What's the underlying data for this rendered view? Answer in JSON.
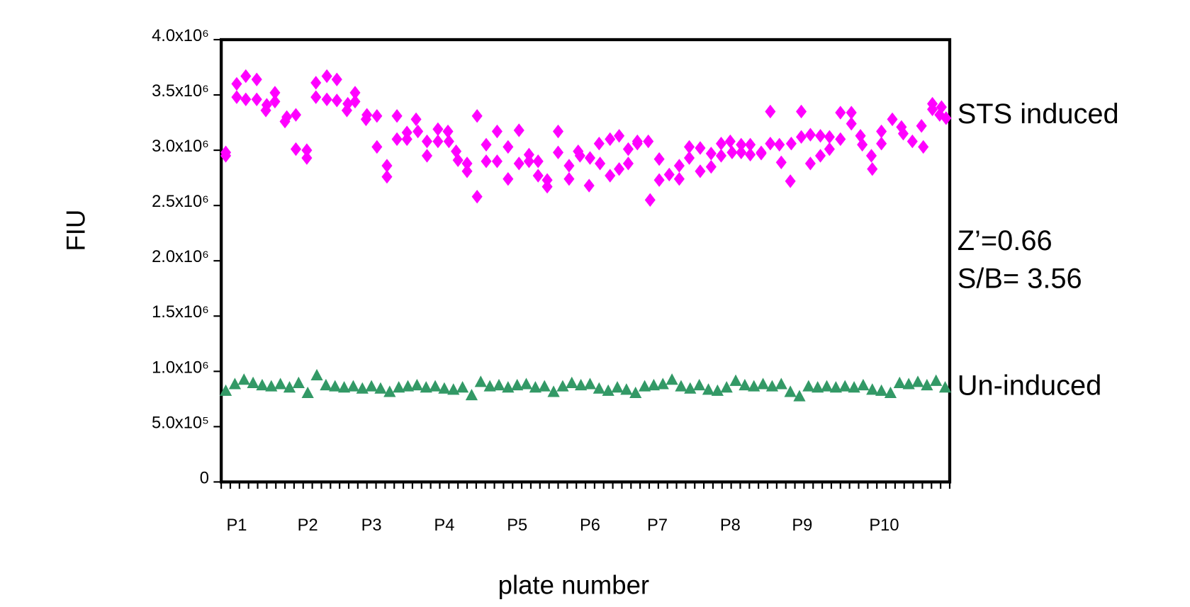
{
  "chart_data": {
    "type": "scatter",
    "y_label": "FIU",
    "x_label": "plate number",
    "annotations": [
      "STS induced",
      "Z’=0.66",
      "S/B= 3.56",
      "Un-induced"
    ],
    "xlim": [
      0,
      80
    ],
    "xticks": [
      {
        "value": 1.7,
        "label": "P1"
      },
      {
        "value": 9.5,
        "label": "P2"
      },
      {
        "value": 16.5,
        "label": "P3"
      },
      {
        "value": 24.5,
        "label": "P4"
      },
      {
        "value": 32.5,
        "label": "P5"
      },
      {
        "value": 40.5,
        "label": "P6"
      },
      {
        "value": 47.9,
        "label": "P7"
      },
      {
        "value": 55.9,
        "label": "P8"
      },
      {
        "value": 63.8,
        "label": "P9"
      },
      {
        "value": 72.8,
        "label": "P10"
      }
    ],
    "ylim": [
      0,
      4000000
    ],
    "yticks": [
      0,
      {
        "value": 500000,
        "label": "5.0x10⁵"
      },
      {
        "value": 1000000,
        "label": "1.0x10⁶"
      },
      {
        "value": 1500000,
        "label": "1.5x10⁶"
      },
      {
        "value": 2000000,
        "label": "2.0x10⁶"
      },
      {
        "value": 2500000,
        "label": "2.5x10⁶"
      },
      {
        "value": 3000000,
        "label": "3.0x10⁶"
      },
      {
        "value": 3500000,
        "label": "3.5x10⁶"
      },
      {
        "value": 4000000,
        "label": "4.0x10⁶"
      }
    ],
    "series": [
      {
        "color": "#ff00ff",
        "marker": "diamond",
        "x": [
          0.5,
          0.5,
          1.7,
          1.7,
          2.7,
          2.7,
          3.9,
          3.9,
          4.9,
          5.0,
          5.9,
          5.9,
          7.0,
          7.2,
          8.2,
          8.2,
          9.4,
          9.4,
          10.4,
          10.4,
          11.6,
          11.6,
          12.7,
          12.7,
          13.8,
          13.9,
          14.7,
          14.7,
          15.9,
          16.0,
          17.1,
          17.1,
          18.2,
          18.2,
          19.3,
          19.3,
          20.4,
          20.4,
          21.4,
          21.6,
          22.6,
          22.6,
          23.8,
          23.8,
          24.9,
          25.0,
          25.8,
          26.0,
          27.0,
          27.0,
          28.1,
          28.1,
          29.1,
          29.1,
          30.3,
          30.3,
          31.5,
          31.5,
          32.7,
          32.7,
          33.8,
          33.8,
          34.8,
          34.8,
          35.8,
          35.8,
          37.0,
          37.0,
          38.2,
          38.2,
          39.2,
          39.4,
          40.4,
          40.5,
          41.5,
          41.6,
          42.7,
          42.7,
          43.7,
          43.7,
          44.7,
          44.7,
          45.7,
          45.7,
          46.9,
          47.1,
          48.1,
          48.1,
          49.2,
          50.3,
          50.3,
          51.4,
          51.4,
          52.6,
          52.6,
          53.8,
          53.8,
          54.9,
          54.9,
          55.9,
          56.1,
          57.1,
          57.1,
          58.1,
          58.1,
          59.3,
          59.3,
          60.3,
          60.3,
          61.3,
          61.5,
          62.5,
          62.6,
          63.7,
          63.7,
          64.7,
          64.7,
          65.8,
          65.8,
          66.8,
          66.8,
          68.0,
          68.0,
          69.2,
          69.2,
          70.2,
          70.4,
          71.4,
          71.5,
          72.5,
          72.5,
          73.7,
          74.7,
          74.9,
          75.9,
          76.9,
          77.1,
          78.1,
          78.1,
          78.9,
          79.1,
          79.6
        ],
        "values": [
          2980000,
          2950000,
          3600000,
          3480000,
          3670000,
          3460000,
          3640000,
          3460000,
          3360000,
          3410000,
          3520000,
          3440000,
          3260000,
          3300000,
          3320000,
          3010000,
          3000000,
          2930000,
          3610000,
          3480000,
          3670000,
          3460000,
          3640000,
          3450000,
          3360000,
          3420000,
          3520000,
          3440000,
          3280000,
          3320000,
          3310000,
          3030000,
          2860000,
          2760000,
          3310000,
          3100000,
          3160000,
          3100000,
          3280000,
          3170000,
          2950000,
          3080000,
          3080000,
          3190000,
          3170000,
          3080000,
          2990000,
          2910000,
          2810000,
          2880000,
          3310000,
          2580000,
          3050000,
          2900000,
          3170000,
          2900000,
          3030000,
          2740000,
          2880000,
          3180000,
          2960000,
          2900000,
          2770000,
          2900000,
          2670000,
          2730000,
          3170000,
          2980000,
          2740000,
          2860000,
          2990000,
          2950000,
          2680000,
          2930000,
          3060000,
          2880000,
          3100000,
          2770000,
          3130000,
          2830000,
          2880000,
          3010000,
          3080000,
          3060000,
          3080000,
          2550000,
          2920000,
          2730000,
          2780000,
          2740000,
          2860000,
          3030000,
          2930000,
          3020000,
          2810000,
          2970000,
          2850000,
          2950000,
          3060000,
          3080000,
          2980000,
          3050000,
          2980000,
          3050000,
          2960000,
          2970000,
          2980000,
          3350000,
          3060000,
          3050000,
          2890000,
          2720000,
          3060000,
          3350000,
          3120000,
          2880000,
          3140000,
          3130000,
          2950000,
          3010000,
          3120000,
          3340000,
          3100000,
          3340000,
          3240000,
          3130000,
          3050000,
          2950000,
          2830000,
          3170000,
          3060000,
          3280000,
          3210000,
          3150000,
          3080000,
          3220000,
          3030000,
          3420000,
          3370000,
          3320000,
          3390000,
          3290000
        ]
      },
      {
        "color": "#339966",
        "marker": "triangle",
        "x": [
          0.5,
          1.5,
          2.5,
          3.5,
          4.5,
          5.5,
          6.5,
          7.5,
          8.5,
          9.5,
          10.5,
          11.5,
          12.5,
          13.5,
          14.5,
          15.5,
          16.5,
          17.5,
          18.5,
          19.5,
          20.5,
          21.5,
          22.5,
          23.5,
          24.5,
          25.5,
          26.5,
          27.5,
          28.5,
          29.5,
          30.5,
          31.5,
          32.5,
          33.5,
          34.5,
          35.5,
          36.5,
          37.5,
          38.5,
          39.5,
          40.5,
          41.5,
          42.5,
          43.5,
          44.5,
          45.5,
          46.5,
          47.5,
          48.5,
          49.5,
          50.5,
          51.5,
          52.5,
          53.5,
          54.5,
          55.5,
          56.5,
          57.5,
          58.5,
          59.5,
          60.5,
          61.5,
          62.5,
          63.5,
          64.5,
          65.5,
          66.5,
          67.5,
          68.5,
          69.5,
          70.5,
          71.5,
          72.5,
          73.5,
          74.5,
          75.5,
          76.5,
          77.5,
          78.5,
          79.5
        ],
        "values": [
          820000,
          880000,
          920000,
          890000,
          870000,
          860000,
          880000,
          850000,
          890000,
          800000,
          960000,
          870000,
          860000,
          850000,
          860000,
          840000,
          860000,
          840000,
          810000,
          850000,
          860000,
          870000,
          850000,
          860000,
          840000,
          830000,
          850000,
          780000,
          900000,
          860000,
          870000,
          850000,
          870000,
          880000,
          850000,
          860000,
          810000,
          860000,
          890000,
          870000,
          880000,
          840000,
          820000,
          850000,
          830000,
          800000,
          860000,
          870000,
          880000,
          920000,
          860000,
          840000,
          870000,
          830000,
          820000,
          850000,
          910000,
          870000,
          860000,
          880000,
          860000,
          880000,
          810000,
          770000,
          860000,
          850000,
          860000,
          850000,
          860000,
          850000,
          870000,
          830000,
          820000,
          800000,
          890000,
          880000,
          900000,
          870000,
          910000,
          850000
        ]
      }
    ]
  }
}
